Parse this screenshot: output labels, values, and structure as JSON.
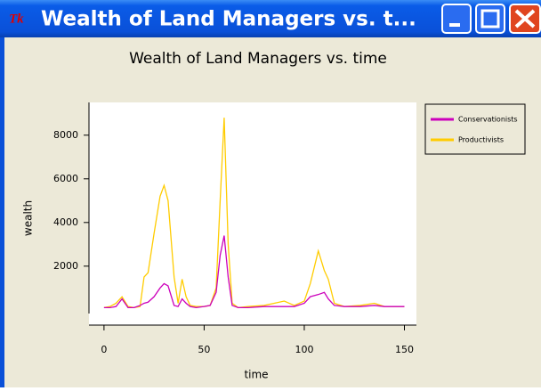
{
  "window": {
    "title": "Wealth of Land Managers vs. t..."
  },
  "chart_data": {
    "type": "line",
    "title": "Wealth of Land Managers vs. time",
    "x_label": "time",
    "y_label": "wealth",
    "x": [
      0,
      3,
      6,
      9,
      12,
      15,
      18,
      20,
      22,
      25,
      28,
      30,
      32,
      35,
      37,
      39,
      41,
      43,
      46,
      50,
      53,
      56,
      58,
      60,
      62,
      64,
      67,
      72,
      80,
      85,
      90,
      95,
      100,
      103,
      107,
      110,
      112,
      115,
      120,
      128,
      135,
      140,
      150
    ],
    "series": [
      {
        "name": "Conservationists",
        "color": "#cc00bb",
        "values": [
          100,
          100,
          150,
          500,
          100,
          100,
          200,
          300,
          350,
          600,
          1000,
          1200,
          1100,
          200,
          150,
          500,
          300,
          150,
          100,
          150,
          200,
          800,
          2500,
          3400,
          1500,
          200,
          100,
          100,
          150,
          150,
          150,
          150,
          300,
          600,
          700,
          800,
          500,
          200,
          150,
          150,
          200,
          150,
          150
        ]
      },
      {
        "name": "Productivists",
        "color": "#ffcc00",
        "values": [
          100,
          150,
          300,
          600,
          150,
          100,
          150,
          1500,
          1700,
          3500,
          5200,
          5700,
          5000,
          1500,
          300,
          1400,
          600,
          200,
          150,
          150,
          200,
          1000,
          5000,
          8800,
          3000,
          300,
          100,
          150,
          200,
          300,
          400,
          200,
          400,
          1200,
          2700,
          1800,
          1400,
          300,
          150,
          200,
          300,
          150,
          150
        ]
      }
    ],
    "xlim": [
      -7.5,
      156
    ],
    "ylim": [
      -700,
      9500
    ],
    "xticks": [
      0,
      50,
      100,
      150
    ],
    "yticks": [
      2000,
      4000,
      6000,
      8000
    ],
    "legend": "right"
  }
}
